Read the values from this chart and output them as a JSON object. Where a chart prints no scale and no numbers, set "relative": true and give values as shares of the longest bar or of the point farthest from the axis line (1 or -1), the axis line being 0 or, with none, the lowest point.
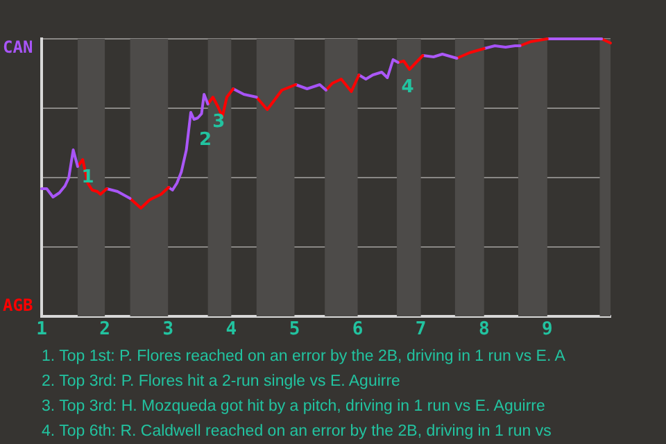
{
  "chart_data": {
    "type": "line",
    "series": [
      {
        "name": "CAN",
        "color": "#a855f7",
        "x": [
          1,
          1.08,
          1.18,
          1.28,
          1.37,
          1.43,
          1.5,
          1.57
        ],
        "values": [
          0.46,
          0.46,
          0.43,
          0.445,
          0.47,
          0.5,
          0.6,
          0.54
        ]
      },
      {
        "name": "AGB",
        "color": "#ff0000",
        "x": [
          1.57,
          1.65,
          1.73,
          1.8,
          1.88,
          1.93,
          2.03
        ],
        "values": [
          0.54,
          0.565,
          0.48,
          0.455,
          0.45,
          0.44,
          0.46
        ]
      },
      {
        "color": "#a956f7",
        "x": [
          2.03,
          2.2,
          2.4
        ],
        "values": [
          0.46,
          0.45,
          0.425
        ]
      },
      {
        "color": "#fe0101",
        "x": [
          2.4,
          2.57,
          2.71,
          2.89,
          3.01
        ],
        "values": [
          0.425,
          0.39,
          0.42,
          0.44,
          0.465
        ]
      },
      {
        "color": "#aa57f7",
        "x": [
          3.01,
          3.07,
          3.14,
          3.21,
          3.29,
          3.36,
          3.41,
          3.47,
          3.53,
          3.57,
          3.63
        ],
        "values": [
          0.465,
          0.455,
          0.48,
          0.52,
          0.6,
          0.735,
          0.71,
          0.715,
          0.73,
          0.8,
          0.765
        ]
      },
      {
        "color": "#fd0202",
        "x": [
          3.63,
          3.71,
          3.79,
          3.86,
          3.93,
          4.03
        ],
        "values": [
          0.765,
          0.79,
          0.755,
          0.72,
          0.79,
          0.82
        ]
      },
      {
        "color": "#a754f6",
        "x": [
          4.03,
          4.2,
          4.4
        ],
        "values": [
          0.82,
          0.8,
          0.79
        ]
      },
      {
        "color": "#fc0303",
        "x": [
          4.4,
          4.57,
          4.8,
          5.02
        ],
        "values": [
          0.79,
          0.745,
          0.815,
          0.835
        ]
      },
      {
        "color": "#a653f6",
        "x": [
          5.02,
          5.2,
          5.4,
          5.5
        ],
        "values": [
          0.835,
          0.82,
          0.835,
          0.815
        ]
      },
      {
        "color": "#fb0404",
        "x": [
          5.5,
          5.6,
          5.74,
          5.9,
          6.02
        ],
        "values": [
          0.815,
          0.84,
          0.855,
          0.81,
          0.87
        ]
      },
      {
        "color": "#ab58f7",
        "x": [
          6.02,
          6.13,
          6.24,
          6.38,
          6.47,
          6.56,
          6.64
        ],
        "values": [
          0.87,
          0.855,
          0.87,
          0.88,
          0.86,
          0.925,
          0.915
        ]
      },
      {
        "color": "#fa0505",
        "x": [
          6.64,
          6.73,
          6.82,
          7.03
        ],
        "values": [
          0.915,
          0.92,
          0.89,
          0.94
        ]
      },
      {
        "color": "#ac59f8",
        "x": [
          7.03,
          7.2,
          7.34,
          7.57
        ],
        "values": [
          0.94,
          0.935,
          0.945,
          0.93
        ]
      },
      {
        "color": "#f90606",
        "x": [
          7.57,
          7.77,
          8
        ],
        "values": [
          0.93,
          0.95,
          0.965
        ]
      },
      {
        "color": "#a552f6",
        "x": [
          8,
          8.17,
          8.34,
          8.49,
          8.57
        ],
        "values": [
          0.965,
          0.975,
          0.97,
          0.975,
          0.975
        ]
      },
      {
        "color": "#f80707",
        "x": [
          8.57,
          8.74,
          9
        ],
        "values": [
          0.975,
          0.99,
          1
        ]
      },
      {
        "color": "#ad5af8",
        "x": [
          9,
          9.86
        ],
        "values": [
          1,
          1
        ]
      },
      {
        "color": "#f70808",
        "x": [
          9.86,
          10
        ],
        "values": [
          1,
          0.985
        ]
      }
    ],
    "relative": true,
    "xlim": [
      1,
      10
    ],
    "xticks": [
      1,
      2,
      3,
      4,
      5,
      6,
      7,
      8,
      9
    ],
    "grid": "y",
    "legend": false,
    "marker": "none",
    "line_style": "solid",
    "bands": [
      {
        "axis": "x",
        "from": 1.57,
        "to": 2,
        "color": "#4d4b49"
      },
      {
        "axis": "x",
        "from": 2.4,
        "to": 3,
        "color": "#4d4b49"
      },
      {
        "axis": "x",
        "from": 3.63,
        "to": 4,
        "color": "#4d4b49"
      },
      {
        "axis": "x",
        "from": 4.4,
        "to": 5,
        "color": "#4d4b49"
      },
      {
        "axis": "x",
        "from": 5.48,
        "to": 6,
        "color": "#4d4b49"
      },
      {
        "axis": "x",
        "from": 6.62,
        "to": 7,
        "color": "#4d4b49"
      },
      {
        "axis": "x",
        "from": 7.54,
        "to": 8,
        "color": "#4d4b49"
      },
      {
        "axis": "x",
        "from": 8.54,
        "to": 9,
        "color": "#4d4b49"
      },
      {
        "axis": "x",
        "from": 9.83,
        "to": 10,
        "color": "#4d4b49"
      }
    ],
    "annotations": [
      {
        "text": "1",
        "x": 1.5,
        "y": 0.6
      },
      {
        "text": "2",
        "x": 3.36,
        "y": 0.735
      },
      {
        "text": "3",
        "x": 3.57,
        "y": 0.8
      },
      {
        "text": "4",
        "x": 6.56,
        "y": 0.925
      },
      "1. Top 1st: P. Flores reached on an error by the 2B, driving in 1 run vs E. A",
      "2. Top 3rd: P. Flores hit a 2-run single vs E. Aguirre",
      "3. Top 3rd: H. Mozqueda got hit by a pitch, driving in 1 run vs E. Aguirre",
      "4. Top 6th: R. Caldwell reached on an error by the 2B, driving in 1 run vs"
    ]
  }
}
